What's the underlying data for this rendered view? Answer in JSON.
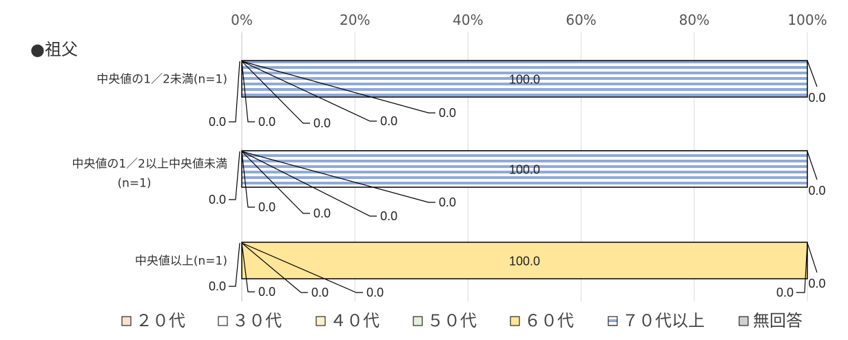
{
  "chart_data": {
    "type": "bar",
    "stacked": true,
    "orientation": "horizontal",
    "title": "●祖父",
    "x_ticks": [
      "0%",
      "20%",
      "40%",
      "60%",
      "80%",
      "100%"
    ],
    "xlim": [
      0,
      100
    ],
    "grid": true,
    "legend_position": "bottom",
    "categories": [
      [
        "中央値の1／2未満(n=1)"
      ],
      [
        "中央値の1／2以上中央値未満",
        "(n=1)"
      ],
      [
        "中央値以上(n=1)"
      ]
    ],
    "series": [
      {
        "name": "20代",
        "values": [
          0.0,
          0.0,
          0.0
        ],
        "color": "#FBE0D2",
        "pattern": "solid"
      },
      {
        "name": "30代",
        "values": [
          0.0,
          0.0,
          0.0
        ],
        "color": "#FFFFFF",
        "pattern": "solid"
      },
      {
        "name": "40代",
        "values": [
          0.0,
          0.0,
          0.0
        ],
        "color": "#FFF2CC",
        "pattern": "solid"
      },
      {
        "name": "50代",
        "values": [
          0.0,
          0.0,
          0.0
        ],
        "color": "#E2EFDA",
        "pattern": "solid"
      },
      {
        "name": "60代",
        "values": [
          0.0,
          0.0,
          100.0
        ],
        "color": "#FFE699",
        "pattern": "solid"
      },
      {
        "name": "70代以上",
        "values": [
          100.0,
          100.0,
          0.0
        ],
        "color": "#8EA9DB",
        "pattern": "stripes"
      },
      {
        "name": "無回答",
        "values": [
          0.0,
          0.0,
          0.0
        ],
        "color": "#D0D0D0",
        "pattern": "solid"
      }
    ],
    "value_labels": [
      [
        "0.0",
        "0.0",
        "0.0",
        "0.0",
        "0.0",
        "100.0",
        "0.0"
      ],
      [
        "0.0",
        "0.0",
        "0.0",
        "0.0",
        "0.0",
        "100.0",
        "0.0"
      ],
      [
        "0.0",
        "0.0",
        "0.0",
        "0.0",
        "100.0",
        "0.0",
        "0.0"
      ]
    ],
    "legend_labels": [
      "２０代",
      "３０代",
      "４０代",
      "５０代",
      "６０代",
      "７０代以上",
      "無回答"
    ]
  }
}
